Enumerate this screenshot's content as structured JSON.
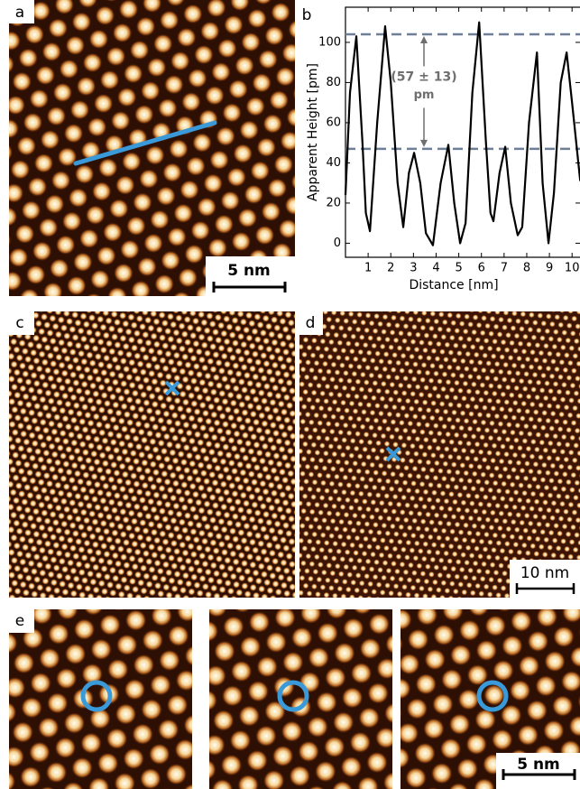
{
  "panels": [
    {
      "label": "a",
      "scale_bar": "5 nm"
    },
    {
      "label": "b"
    },
    {
      "label": "c"
    },
    {
      "label": "d",
      "scale_bar": "10 nm"
    },
    {
      "label": "e",
      "scale_bar": "5 nm"
    }
  ],
  "chart_data": {
    "type": "line",
    "x_label": "Distance [nm]",
    "y_label": "Apparent Height [pm]",
    "annotations": [
      "(57 ± 13)",
      "pm"
    ],
    "hlines": [
      104,
      47
    ],
    "x": [
      0,
      0.2,
      0.48,
      0.75,
      0.9,
      1.08,
      1.4,
      1.75,
      2.0,
      2.3,
      2.55,
      2.8,
      3.03,
      3.3,
      3.55,
      3.86,
      4.2,
      4.54,
      4.8,
      5.06,
      5.3,
      5.6,
      5.9,
      6.2,
      6.4,
      6.53,
      6.8,
      7.05,
      7.3,
      7.6,
      7.8,
      8.1,
      8.45,
      8.7,
      8.96,
      9.2,
      9.5,
      9.76,
      10.0,
      10.36
    ],
    "series": [
      {
        "color": "#000000",
        "values": [
          24,
          75,
          103,
          50,
          15,
          6,
          60,
          108,
          80,
          30,
          8,
          35,
          45,
          30,
          5,
          -1,
          30,
          49,
          20,
          0,
          10,
          75,
          110,
          50,
          15,
          11,
          35,
          48,
          20,
          4,
          8,
          60,
          95,
          30,
          0,
          25,
          80,
          95,
          70,
          31
        ]
      }
    ],
    "xlim": [
      0,
      10.35
    ],
    "ylim": [
      -7,
      117.5
    ],
    "xticks": [
      1,
      2,
      3,
      4,
      5,
      6,
      7,
      8,
      9,
      10
    ],
    "yticks": [
      0,
      20,
      40,
      60,
      80,
      100
    ]
  }
}
